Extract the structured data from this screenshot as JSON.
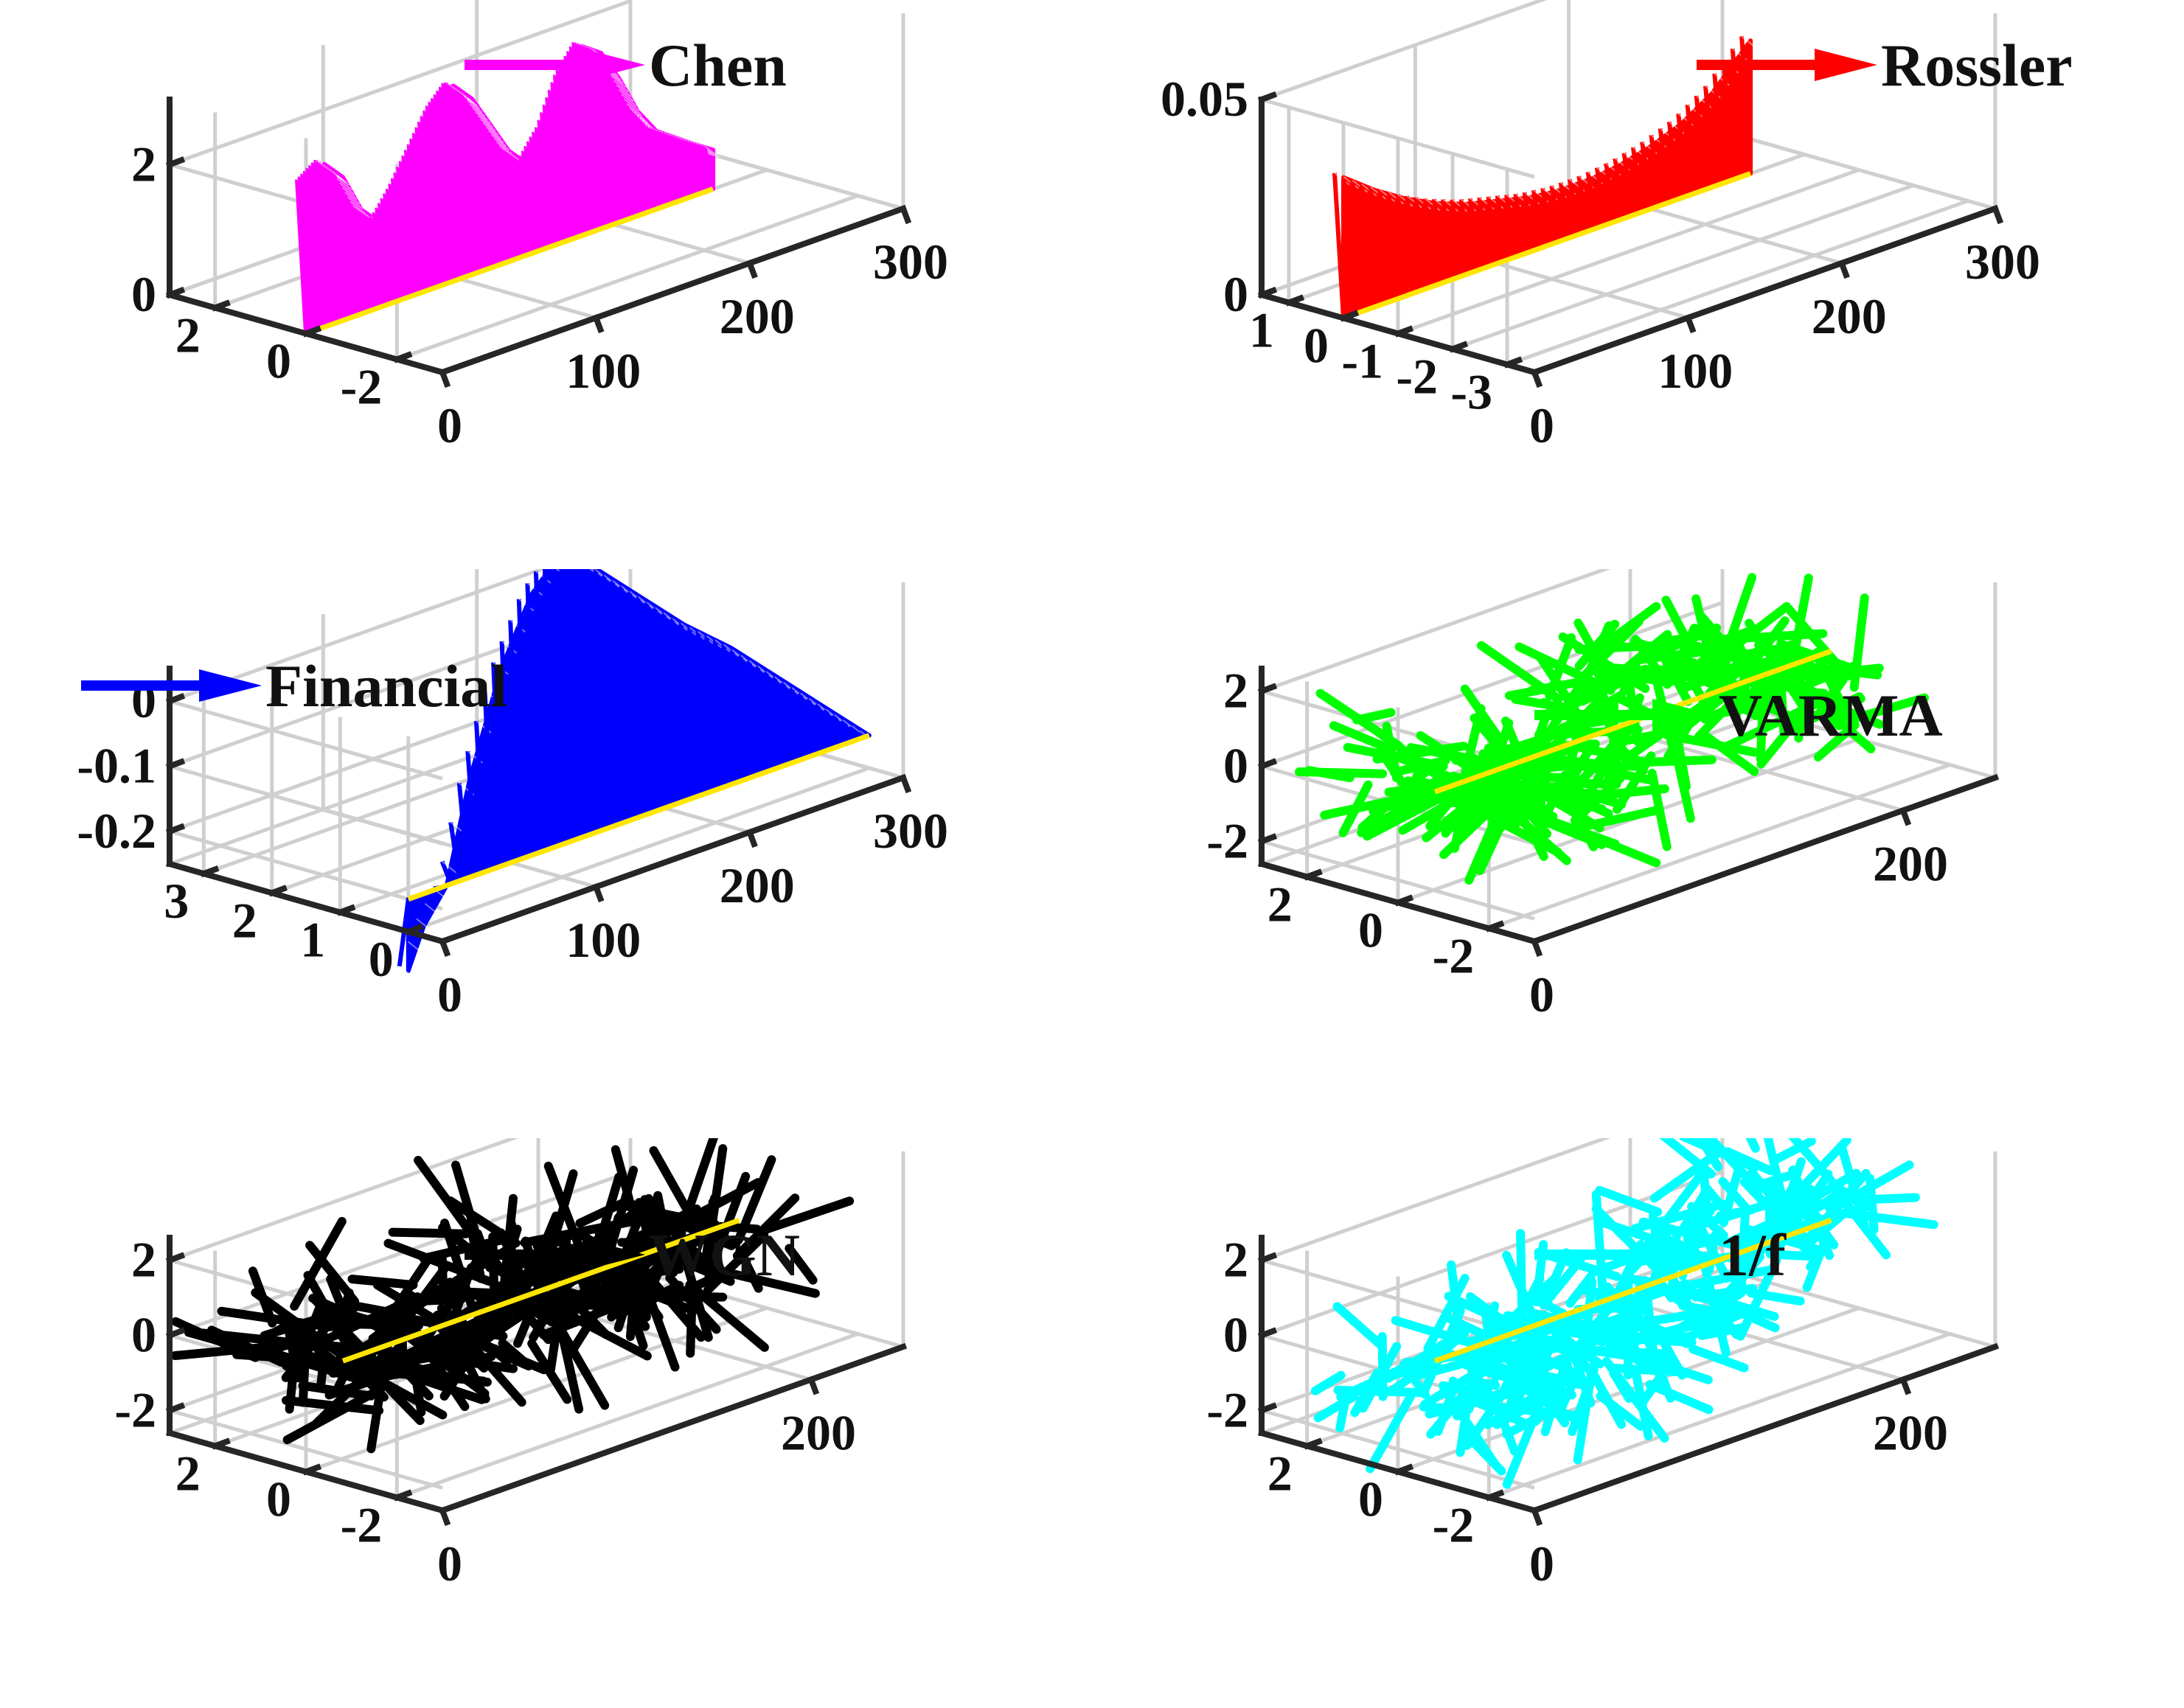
{
  "figure": {
    "box_color": "#cfcfcf",
    "axis_color": "#262626",
    "baseline_color": "#ffe600"
  },
  "chart_data": [
    {
      "type": "quiver3d",
      "title": "Chen",
      "legend": "Chen",
      "color": "#ff00ff",
      "density": 1.7,
      "x_range": [
        0,
        300
      ],
      "y_range": [
        -3,
        3
      ],
      "z_range": [
        0,
        3
      ],
      "xticks": [
        0,
        100,
        200,
        300
      ],
      "yticks": [
        -2,
        0,
        2
      ],
      "zticks": [
        0,
        2
      ],
      "xticklabels": [
        "0",
        "100",
        "200",
        "300"
      ],
      "yticklabels": [
        "-2",
        "0",
        "2"
      ],
      "zticklabels": [
        "0",
        "2"
      ],
      "baseline": {
        "x": [
          0,
          265
        ],
        "y": 0,
        "z": 0
      },
      "series": [
        {
          "x": 0,
          "z": 2.3
        },
        {
          "x": 12,
          "z": 2.5
        },
        {
          "x": 24,
          "z": 2.2
        },
        {
          "x": 36,
          "z": 1.6
        },
        {
          "x": 48,
          "z": 1.3
        },
        {
          "x": 60,
          "z": 1.7
        },
        {
          "x": 72,
          "z": 2.2
        },
        {
          "x": 84,
          "z": 2.7
        },
        {
          "x": 96,
          "z": 3.0
        },
        {
          "x": 108,
          "z": 2.7
        },
        {
          "x": 120,
          "z": 2.2
        },
        {
          "x": 132,
          "z": 1.7
        },
        {
          "x": 144,
          "z": 1.4
        },
        {
          "x": 156,
          "z": 1.8
        },
        {
          "x": 168,
          "z": 2.5
        },
        {
          "x": 180,
          "z": 2.9
        },
        {
          "x": 192,
          "z": 2.7
        },
        {
          "x": 204,
          "z": 2.2
        },
        {
          "x": 216,
          "z": 1.6
        },
        {
          "x": 228,
          "z": 1.2
        },
        {
          "x": 240,
          "z": 1.0
        },
        {
          "x": 252,
          "z": 0.8
        },
        {
          "x": 265,
          "z": 0.6
        }
      ]
    },
    {
      "type": "quiver3d",
      "title": "Rossler",
      "legend": "Rossler",
      "color": "#ff0000",
      "density": 0.5,
      "x_range": [
        0,
        300
      ],
      "y_range": [
        -3.5,
        1.5
      ],
      "z_range": [
        0,
        0.05
      ],
      "xticks": [
        0,
        100,
        200,
        300
      ],
      "yticks": [
        -3,
        -2,
        -1,
        0,
        1
      ],
      "zticks": [
        0,
        0.05
      ],
      "xticklabels": [
        "0",
        "100",
        "200",
        "300"
      ],
      "yticklabels": [
        "-3",
        "-2",
        "-1",
        "0",
        "1"
      ],
      "zticklabels": [
        "0",
        "0.05"
      ],
      "baseline": {
        "x": [
          0,
          265
        ],
        "y": 0,
        "z": 0
      },
      "series": [
        {
          "x": 0,
          "z": 0.036
        },
        {
          "x": 20,
          "z": 0.03
        },
        {
          "x": 40,
          "z": 0.025
        },
        {
          "x": 60,
          "z": 0.021
        },
        {
          "x": 80,
          "z": 0.018
        },
        {
          "x": 100,
          "z": 0.016
        },
        {
          "x": 120,
          "z": 0.014
        },
        {
          "x": 140,
          "z": 0.013
        },
        {
          "x": 160,
          "z": 0.013
        },
        {
          "x": 180,
          "z": 0.014
        },
        {
          "x": 200,
          "z": 0.016
        },
        {
          "x": 220,
          "z": 0.019
        },
        {
          "x": 240,
          "z": 0.024
        },
        {
          "x": 255,
          "z": 0.03
        },
        {
          "x": 265,
          "z": 0.034
        }
      ]
    },
    {
      "type": "quiver3d",
      "title": "Financial",
      "legend": "Financial",
      "color": "#0000ff",
      "density": 0.6,
      "x_range": [
        0,
        300
      ],
      "y_range": [
        -0.5,
        3.5
      ],
      "z_range": [
        -0.25,
        0.05
      ],
      "xticks": [
        0,
        100,
        200,
        300
      ],
      "yticks": [
        0,
        1,
        2,
        3
      ],
      "zticks": [
        -0.2,
        -0.1,
        0
      ],
      "xticklabels": [
        "0",
        "100",
        "200",
        "300"
      ],
      "yticklabels": [
        "0",
        "1",
        "2",
        "3"
      ],
      "zticklabels": [
        "-0.2",
        "-0.1",
        "0"
      ],
      "baseline": {
        "x": [
          0,
          300
        ],
        "y": 0,
        "z": -0.2
      },
      "series": [
        {
          "x": 0,
          "z": -0.31
        },
        {
          "x": 10,
          "z": -0.25
        },
        {
          "x": 25,
          "z": -0.2
        },
        {
          "x": 40,
          "z": -0.05
        },
        {
          "x": 60,
          "z": 0.1
        },
        {
          "x": 80,
          "z": 0.2
        },
        {
          "x": 100,
          "z": 0.25
        },
        {
          "x": 120,
          "z": 0.21
        },
        {
          "x": 150,
          "z": 0.14
        },
        {
          "x": 180,
          "z": 0.07
        },
        {
          "x": 210,
          "z": 0.01
        },
        {
          "x": 240,
          "z": -0.06
        },
        {
          "x": 270,
          "z": -0.13
        },
        {
          "x": 300,
          "z": -0.2
        }
      ]
    },
    {
      "type": "quiver3d",
      "title": "VARMA",
      "legend": "VARMA",
      "color": "#00ff00",
      "density": 1.0,
      "noisy": true,
      "seed": 11,
      "x_range": [
        0,
        250
      ],
      "y_range": [
        -3,
        3
      ],
      "z_range": [
        -2.6,
        2.6
      ],
      "xticks": [
        0,
        200
      ],
      "yticks": [
        -2,
        0,
        2
      ],
      "zticks": [
        -2,
        0,
        2
      ],
      "xticklabels": [
        "0",
        "200"
      ],
      "yticklabels": [
        "-2",
        "0",
        "2"
      ],
      "zticklabels": [
        "-2",
        "0",
        "2"
      ],
      "baseline": {
        "x": [
          20,
          235
        ],
        "y": 0,
        "z": 0
      },
      "series": [
        {
          "x": 0,
          "z": 1.0
        },
        {
          "x": 25,
          "z": 0.5
        },
        {
          "x": 50,
          "z": -0.5
        },
        {
          "x": 75,
          "z": -1.0
        },
        {
          "x": 100,
          "z": -0.3
        },
        {
          "x": 125,
          "z": 0.5
        },
        {
          "x": 150,
          "z": 1.0
        },
        {
          "x": 175,
          "z": 0.6
        },
        {
          "x": 200,
          "z": -0.2
        },
        {
          "x": 225,
          "z": -0.5
        }
      ]
    },
    {
      "type": "quiver3d",
      "title": "WGN",
      "legend": "WGN",
      "color": "#000000",
      "density": 1.1,
      "noisy": true,
      "seed": 23,
      "x_range": [
        0,
        250
      ],
      "y_range": [
        -3,
        3
      ],
      "z_range": [
        -2.6,
        2.6
      ],
      "xticks": [
        0,
        200
      ],
      "yticks": [
        -2,
        0,
        2
      ],
      "zticks": [
        -2,
        0,
        2
      ],
      "xticklabels": [
        "0",
        "200"
      ],
      "yticklabels": [
        "-2",
        "0",
        "2"
      ],
      "zticklabels": [
        "-2",
        "0",
        "2"
      ],
      "baseline": {
        "x": [
          20,
          235
        ],
        "y": 0,
        "z": 0
      },
      "series": [
        {
          "x": 0,
          "z": 0.0
        },
        {
          "x": 25,
          "z": 0.3
        },
        {
          "x": 50,
          "z": -0.3
        },
        {
          "x": 75,
          "z": 0.0
        },
        {
          "x": 100,
          "z": 0.2
        },
        {
          "x": 125,
          "z": 0.4
        },
        {
          "x": 150,
          "z": 0.0
        },
        {
          "x": 175,
          "z": -0.2
        },
        {
          "x": 200,
          "z": 0.2
        },
        {
          "x": 225,
          "z": 0.0
        }
      ]
    },
    {
      "type": "quiver3d",
      "title": "1/f",
      "legend": "1/f",
      "color": "#00ffff",
      "density": 1.0,
      "noisy": true,
      "seed": 37,
      "x_range": [
        0,
        250
      ],
      "y_range": [
        -3,
        3
      ],
      "z_range": [
        -2.6,
        2.6
      ],
      "xticks": [
        0,
        200
      ],
      "yticks": [
        -2,
        0,
        2
      ],
      "zticks": [
        -2,
        0,
        2
      ],
      "xticklabels": [
        "0",
        "200"
      ],
      "yticklabels": [
        "-2",
        "0",
        "2"
      ],
      "zticklabels": [
        "-2",
        "0",
        "2"
      ],
      "baseline": {
        "x": [
          20,
          235
        ],
        "y": 0,
        "z": 0
      },
      "series": [
        {
          "x": 0,
          "z": -0.8
        },
        {
          "x": 25,
          "z": -0.6
        },
        {
          "x": 50,
          "z": -0.9
        },
        {
          "x": 75,
          "z": -1.1
        },
        {
          "x": 100,
          "z": -1.0
        },
        {
          "x": 125,
          "z": -1.1
        },
        {
          "x": 150,
          "z": -0.6
        },
        {
          "x": 175,
          "z": 0.3
        },
        {
          "x": 200,
          "z": 1.0
        },
        {
          "x": 225,
          "z": 1.3
        }
      ]
    }
  ]
}
